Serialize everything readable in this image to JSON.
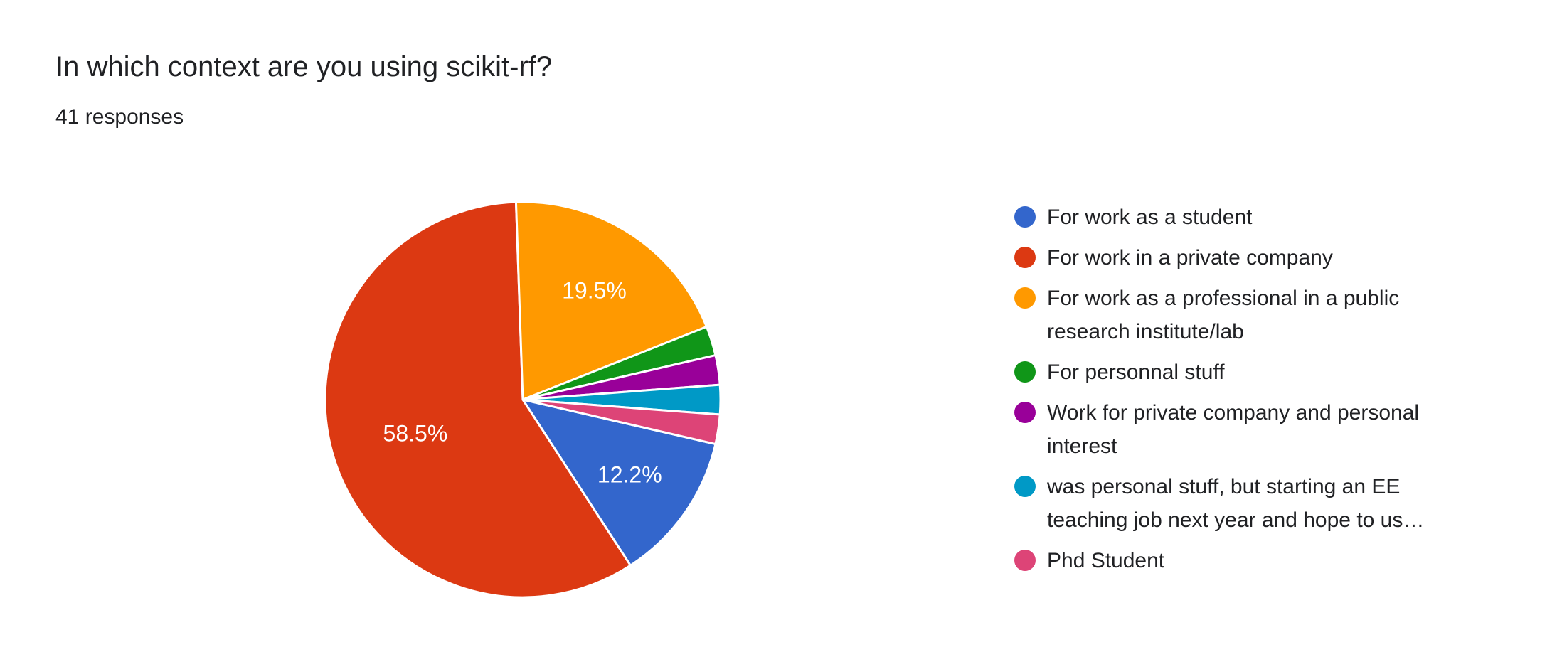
{
  "header": {
    "title": "In which context are you using scikit-rf?",
    "responses": "41 responses"
  },
  "chart_data": {
    "type": "pie",
    "title": "In which context are you using scikit-rf?",
    "subtitle": "41 responses",
    "total_responses": 41,
    "legend_position": "right",
    "start_angle_deg": -13,
    "direction": "clockwise",
    "slices": [
      {
        "label": "For work as a student",
        "percent": 12.2,
        "display": "12.2%",
        "color": "#3366CC"
      },
      {
        "label": "For work in a private company",
        "percent": 58.5,
        "display": "58.5%",
        "color": "#DC3912"
      },
      {
        "label": "For work as a professional in a public research institute/lab",
        "percent": 19.5,
        "display": "19.5%",
        "color": "#FF9900"
      },
      {
        "label": "For personnal stuff",
        "percent": 2.4,
        "display": "",
        "color": "#109618"
      },
      {
        "label": "Work for private company and personal interest",
        "percent": 2.4,
        "display": "",
        "color": "#990099"
      },
      {
        "label": "was personal stuff, but starting an EE teaching job next year and hope to us…",
        "percent": 2.4,
        "display": "",
        "color": "#0099C6"
      },
      {
        "label": "Phd Student",
        "percent": 2.4,
        "display": "",
        "color": "#DD4477"
      }
    ]
  }
}
